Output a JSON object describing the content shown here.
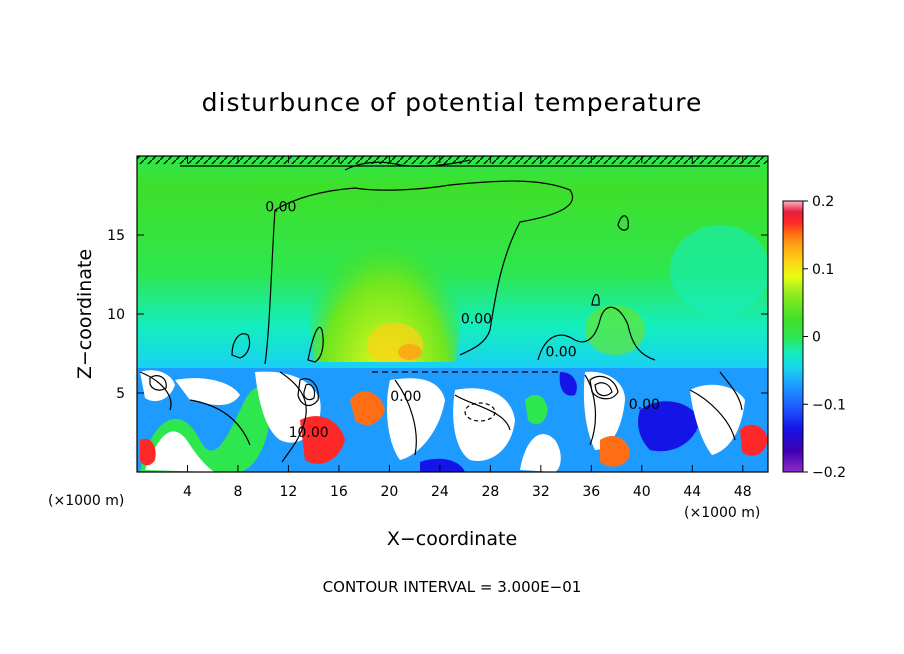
{
  "chart_data": {
    "type": "heatmap",
    "title": "disturbunce of potential temperature",
    "xlabel": "X−coordinate",
    "ylabel": "Z−coordinate",
    "x_unit_label": "(×1000 m)",
    "x_unit_label_right": "(×1000 m)",
    "xlim": [
      0,
      50
    ],
    "ylim": [
      0,
      20
    ],
    "x_ticks": [
      4,
      8,
      12,
      16,
      20,
      24,
      28,
      32,
      36,
      40,
      44,
      48
    ],
    "y_ticks": [
      5,
      10,
      15
    ],
    "x_tick_labels": [
      "4",
      "8",
      "12",
      "16",
      "20",
      "24",
      "28",
      "32",
      "36",
      "40",
      "44",
      "48"
    ],
    "y_tick_labels": [
      "5",
      "10",
      "15"
    ],
    "colorbar": {
      "range": [
        -0.2,
        0.2
      ],
      "ticks": [
        0.2,
        0.1,
        0,
        -0.1,
        -0.2
      ],
      "tick_labels": [
        "0.2",
        "0.1",
        "0",
        "−0.1",
        "−0.2"
      ],
      "colors": [
        "#8e2cc7",
        "#3c00b4",
        "#1414e6",
        "#1e5aff",
        "#1e9bff",
        "#19d2f0",
        "#14eebe",
        "#1ee88c",
        "#2ee64e",
        "#3ee02a",
        "#6ee61e",
        "#aef01e",
        "#e6ff14",
        "#ffd214",
        "#ffa014",
        "#ff6e14",
        "#ff2828",
        "#e61e3c",
        "#ff6e8c",
        "#ffb4c8"
      ]
    },
    "contour_labels": [
      {
        "text": "0.00",
        "x": 11.4,
        "z": 16.5
      },
      {
        "text": "0.00",
        "x": 26.9,
        "z": 9.4
      },
      {
        "text": "0.00",
        "x": 33.6,
        "z": 7.3
      },
      {
        "text": "0.00",
        "x": 21.3,
        "z": 4.5
      },
      {
        "text": "10.00",
        "x": 13.6,
        "z": 2.2
      },
      {
        "text": "0.00",
        "x": 40.2,
        "z": 4.0
      }
    ],
    "footer": "CONTOUR INTERVAL = 3.000E−01"
  }
}
